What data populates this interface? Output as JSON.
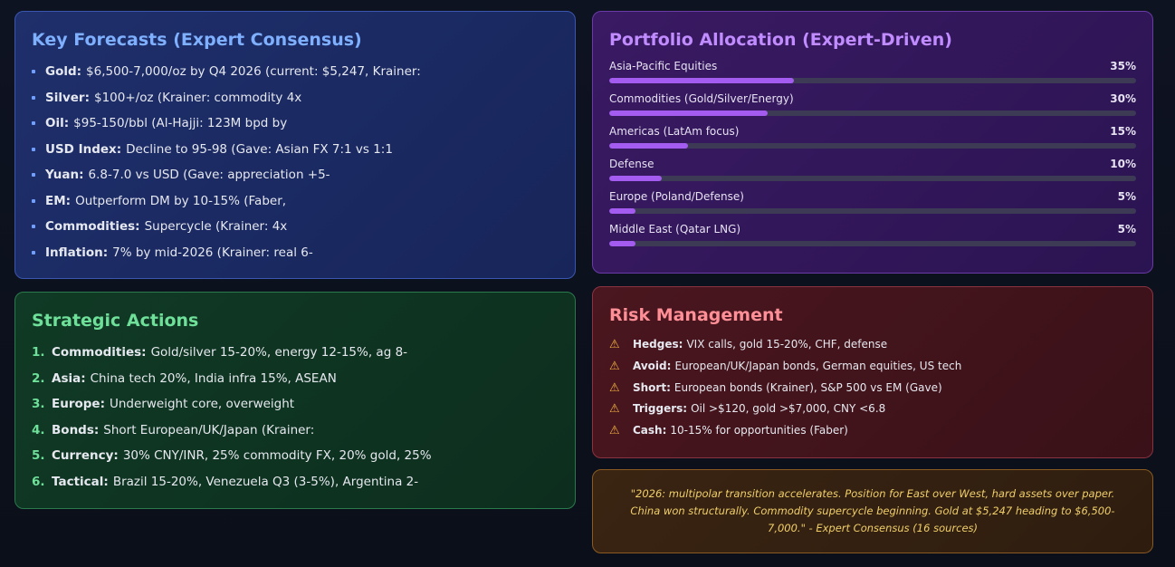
{
  "forecasts": {
    "title": "Key Forecasts (Expert Consensus)",
    "items": [
      {
        "label": "Gold:",
        "text": "$6,500-7,000/oz by Q4 2026 (current: $5,247, Krainer:"
      },
      {
        "label": "Silver:",
        "text": "$100+/oz (Krainer: commodity 4x"
      },
      {
        "label": "Oil:",
        "text": "$95-150/bbl (Al-Hajji: 123M bpd by"
      },
      {
        "label": "USD Index:",
        "text": "Decline to 95-98 (Gave: Asian FX 7:1 vs 1:1"
      },
      {
        "label": "Yuan:",
        "text": "6.8-7.0 vs USD (Gave: appreciation +5-"
      },
      {
        "label": "EM:",
        "text": "Outperform DM by 10-15% (Faber,"
      },
      {
        "label": "Commodities:",
        "text": "Supercycle (Krainer: 4x"
      },
      {
        "label": "Inflation:",
        "text": "7% by mid-2026 (Krainer: real 6-"
      }
    ]
  },
  "actions": {
    "title": "Strategic Actions",
    "items": [
      {
        "num": "1.",
        "label": "Commodities:",
        "text": "Gold/silver 15-20%, energy 12-15%, ag 8-"
      },
      {
        "num": "2.",
        "label": "Asia:",
        "text": "China tech 20%, India infra 15%, ASEAN"
      },
      {
        "num": "3.",
        "label": "Europe:",
        "text": "Underweight core, overweight"
      },
      {
        "num": "4.",
        "label": "Bonds:",
        "text": "Short European/UK/Japan (Krainer:"
      },
      {
        "num": "5.",
        "label": "Currency:",
        "text": "30% CNY/INR, 25% commodity FX, 20% gold, 25%"
      },
      {
        "num": "6.",
        "label": "Tactical:",
        "text": "Brazil 15-20%, Venezuela Q3 (3-5%), Argentina 2-"
      }
    ]
  },
  "portfolio": {
    "title": "Portfolio Allocation (Expert-Driven)",
    "accent": "#a45cf0",
    "items": [
      {
        "label": "Asia-Pacific Equities",
        "pct": "35%",
        "value": 35
      },
      {
        "label": "Commodities (Gold/Silver/Energy)",
        "pct": "30%",
        "value": 30
      },
      {
        "label": "Americas (LatAm focus)",
        "pct": "15%",
        "value": 15
      },
      {
        "label": "Defense",
        "pct": "10%",
        "value": 10
      },
      {
        "label": "Europe (Poland/Defense)",
        "pct": "5%",
        "value": 5
      },
      {
        "label": "Middle East (Qatar LNG)",
        "pct": "5%",
        "value": 5
      }
    ]
  },
  "risk": {
    "title": "Risk Management",
    "icon": "warning-icon",
    "items": [
      {
        "label": "Hedges:",
        "text": "VIX calls, gold 15-20%, CHF, defense"
      },
      {
        "label": "Avoid:",
        "text": "European/UK/Japan bonds, German equities, US tech"
      },
      {
        "label": "Short:",
        "text": "European bonds (Krainer), S&P 500 vs EM (Gave)"
      },
      {
        "label": "Triggers:",
        "text": "Oil >$120, gold >$7,000, CNY <6.8"
      },
      {
        "label": "Cash:",
        "text": "10-15% for opportunities (Faber)"
      }
    ]
  },
  "quote": {
    "text": "\"2026: multipolar transition accelerates. Position for East over West, hard assets over paper. China won structurally. Commodity supercycle beginning. Gold at $5,247 heading to $6,500-7,000.\" - Expert Consensus (16 sources)"
  }
}
